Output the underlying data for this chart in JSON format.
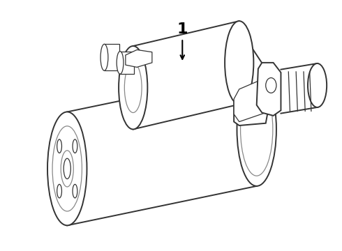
{
  "bg_color": "#ffffff",
  "line_color": "#333333",
  "inner_line_color": "#888888",
  "label_text": "1",
  "label_fontsize": 16,
  "fig_width": 4.9,
  "fig_height": 3.6,
  "dpi": 100
}
